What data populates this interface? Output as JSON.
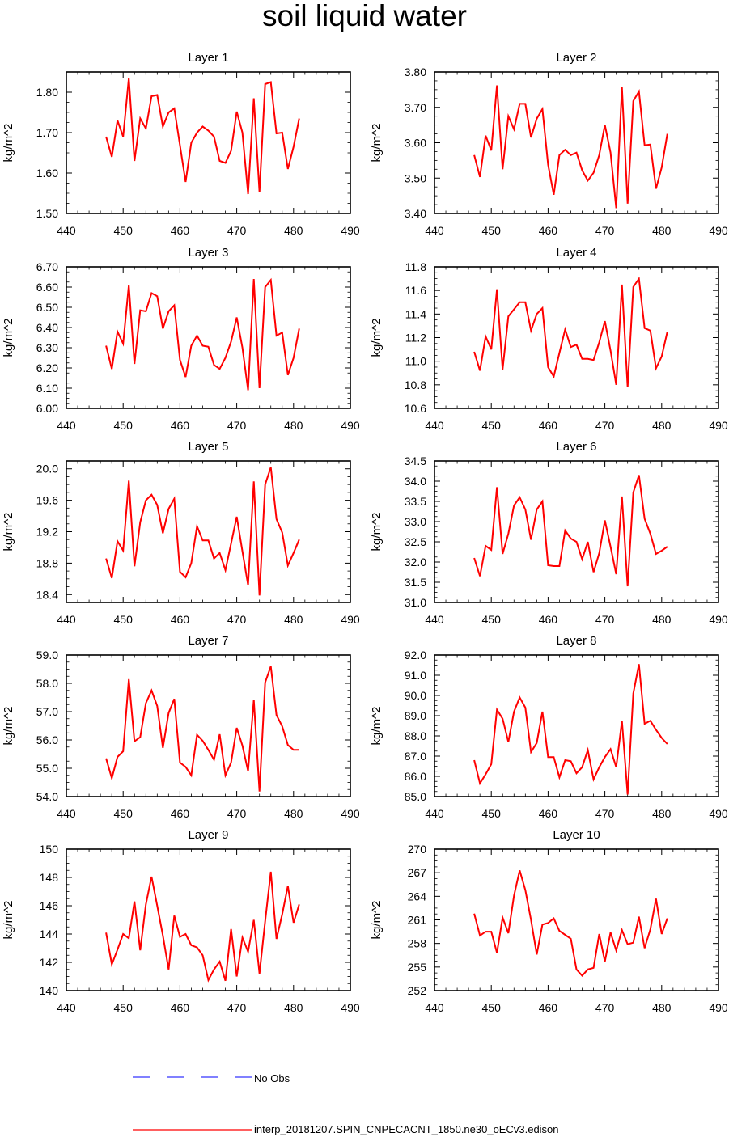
{
  "title": "soil liquid water",
  "legend": {
    "obs_label": "No Obs",
    "obs_color": "#0000ff",
    "model_label": "interp_20181207.SPIN_CNPECACNT_1850.ne30_oECv3.edison",
    "model_color": "#ff0000"
  },
  "chart_data": [
    {
      "type": "line",
      "title": "Layer 1",
      "ylabel": "kg/m^2",
      "xlim": [
        440,
        490
      ],
      "xticks": [
        440,
        450,
        460,
        470,
        480,
        490
      ],
      "xtick_labels": [
        "440",
        "450",
        "460",
        "470",
        "480",
        "490"
      ],
      "ylim": [
        1.5,
        1.85
      ],
      "yticks": [
        1.5,
        1.6,
        1.7,
        1.8
      ],
      "ytick_labels": [
        "1.50",
        "1.60",
        "1.70",
        "1.80"
      ],
      "x": [
        447,
        448,
        449,
        450,
        451,
        452,
        453,
        454,
        455,
        456,
        457,
        458,
        459,
        461,
        462,
        463,
        464,
        465,
        466,
        467,
        468,
        469,
        470,
        471,
        472,
        473,
        474,
        475,
        476,
        477,
        478,
        479,
        480,
        481
      ],
      "y": [
        1.69,
        1.64,
        1.73,
        1.69,
        1.835,
        1.63,
        1.735,
        1.71,
        1.79,
        1.793,
        1.715,
        1.75,
        1.76,
        1.578,
        1.675,
        1.7,
        1.715,
        1.705,
        1.69,
        1.63,
        1.625,
        1.655,
        1.752,
        1.7,
        1.548,
        1.785,
        1.552,
        1.82,
        1.825,
        1.698,
        1.7,
        1.61,
        1.665,
        1.735
      ]
    },
    {
      "type": "line",
      "title": "Layer 2",
      "ylabel": "kg/m^2",
      "xlim": [
        440,
        490
      ],
      "xticks": [
        440,
        450,
        460,
        470,
        480,
        490
      ],
      "xtick_labels": [
        "440",
        "450",
        "460",
        "470",
        "480",
        "490"
      ],
      "ylim": [
        3.4,
        3.8
      ],
      "yticks": [
        3.4,
        3.5,
        3.6,
        3.7,
        3.8
      ],
      "ytick_labels": [
        "3.40",
        "3.50",
        "3.60",
        "3.70",
        "3.80"
      ],
      "x": [
        447,
        448,
        449,
        450,
        451,
        452,
        453,
        454,
        455,
        456,
        457,
        458,
        459,
        460,
        461,
        462,
        463,
        464,
        465,
        466,
        467,
        468,
        469,
        470,
        471,
        472,
        473,
        474,
        475,
        476,
        477,
        478,
        479,
        480,
        481
      ],
      "y": [
        3.565,
        3.503,
        3.62,
        3.578,
        3.762,
        3.525,
        3.675,
        3.638,
        3.71,
        3.71,
        3.615,
        3.668,
        3.695,
        3.538,
        3.453,
        3.565,
        3.58,
        3.565,
        3.572,
        3.522,
        3.493,
        3.515,
        3.565,
        3.65,
        3.572,
        3.415,
        3.757,
        3.428,
        3.718,
        3.745,
        3.593,
        3.595,
        3.47,
        3.53,
        3.625
      ]
    },
    {
      "type": "line",
      "title": "Layer 3",
      "ylabel": "kg/m^2",
      "xlim": [
        440,
        490
      ],
      "xticks": [
        440,
        450,
        460,
        470,
        480,
        490
      ],
      "xtick_labels": [
        "440",
        "450",
        "460",
        "470",
        "480",
        "490"
      ],
      "ylim": [
        6.0,
        6.7
      ],
      "yticks": [
        6.0,
        6.1,
        6.2,
        6.3,
        6.4,
        6.5,
        6.6,
        6.7
      ],
      "ytick_labels": [
        "6.00",
        "6.10",
        "6.20",
        "6.30",
        "6.40",
        "6.50",
        "6.60",
        "6.70"
      ],
      "x": [
        447,
        448,
        449,
        450,
        451,
        452,
        453,
        454,
        455,
        456,
        457,
        458,
        459,
        460,
        461,
        462,
        463,
        464,
        465,
        466,
        467,
        468,
        469,
        470,
        471,
        472,
        473,
        474,
        475,
        476,
        477,
        478,
        479,
        480,
        481
      ],
      "y": [
        6.31,
        6.195,
        6.38,
        6.32,
        6.61,
        6.22,
        6.485,
        6.48,
        6.57,
        6.555,
        6.395,
        6.48,
        6.51,
        6.24,
        6.155,
        6.31,
        6.36,
        6.31,
        6.305,
        6.215,
        6.195,
        6.25,
        6.33,
        6.45,
        6.3,
        6.09,
        6.64,
        6.1,
        6.6,
        6.635,
        6.36,
        6.375,
        6.165,
        6.25,
        6.395
      ]
    },
    {
      "type": "line",
      "title": "Layer 4",
      "ylabel": "kg/m^2",
      "xlim": [
        440,
        490
      ],
      "xticks": [
        440,
        450,
        460,
        470,
        480,
        490
      ],
      "xtick_labels": [
        "440",
        "450",
        "460",
        "470",
        "480",
        "490"
      ],
      "ylim": [
        10.6,
        11.8
      ],
      "yticks": [
        10.6,
        10.8,
        11.0,
        11.2,
        11.4,
        11.6,
        11.8
      ],
      "ytick_labels": [
        "10.6",
        "10.8",
        "11.0",
        "11.2",
        "11.4",
        "11.6",
        "11.8"
      ],
      "x": [
        447,
        448,
        449,
        450,
        451,
        452,
        453,
        454,
        455,
        456,
        457,
        458,
        459,
        460,
        461,
        462,
        463,
        464,
        465,
        466,
        467,
        468,
        469,
        470,
        471,
        472,
        473,
        474,
        475,
        476,
        477,
        478,
        479,
        480,
        481
      ],
      "y": [
        11.08,
        10.92,
        11.21,
        11.1,
        11.61,
        10.93,
        11.38,
        11.44,
        11.5,
        11.5,
        11.26,
        11.4,
        11.45,
        10.95,
        10.87,
        11.07,
        11.27,
        11.12,
        11.14,
        11.02,
        11.02,
        11.01,
        11.16,
        11.34,
        11.09,
        10.8,
        11.65,
        10.78,
        11.63,
        11.7,
        11.28,
        11.26,
        10.94,
        11.04,
        11.25
      ]
    },
    {
      "type": "line",
      "title": "Layer 5",
      "ylabel": "kg/m^2",
      "xlim": [
        440,
        490
      ],
      "xticks": [
        440,
        450,
        460,
        470,
        480,
        490
      ],
      "xtick_labels": [
        "440",
        "450",
        "460",
        "470",
        "480",
        "490"
      ],
      "ylim": [
        18.3,
        20.1
      ],
      "yticks": [
        18.4,
        18.8,
        19.2,
        19.6,
        20.0
      ],
      "ytick_labels": [
        "18.4",
        "18.8",
        "19.2",
        "19.6",
        "20.0"
      ],
      "x": [
        447,
        448,
        449,
        450,
        451,
        452,
        453,
        454,
        455,
        456,
        457,
        458,
        459,
        460,
        461,
        462,
        463,
        464,
        465,
        466,
        467,
        468,
        469,
        470,
        471,
        472,
        473,
        474,
        475,
        476,
        477,
        478,
        479,
        480,
        481
      ],
      "y": [
        18.86,
        18.61,
        19.08,
        18.96,
        19.85,
        18.76,
        19.32,
        19.6,
        19.67,
        19.54,
        19.18,
        19.49,
        19.62,
        18.69,
        18.62,
        18.8,
        19.27,
        19.09,
        19.09,
        18.86,
        18.93,
        18.71,
        19.05,
        19.39,
        18.95,
        18.52,
        19.84,
        18.39,
        19.8,
        20.02,
        19.36,
        19.19,
        18.77,
        18.93,
        19.1
      ]
    },
    {
      "type": "line",
      "title": "Layer 6",
      "ylabel": "kg/m^2",
      "xlim": [
        440,
        490
      ],
      "xticks": [
        440,
        450,
        460,
        470,
        480,
        490
      ],
      "xtick_labels": [
        "440",
        "450",
        "460",
        "470",
        "480",
        "490"
      ],
      "ylim": [
        31.0,
        34.5
      ],
      "yticks": [
        31.0,
        31.5,
        32.0,
        32.5,
        33.0,
        33.5,
        34.0,
        34.5
      ],
      "ytick_labels": [
        "31.0",
        "31.5",
        "32.0",
        "32.5",
        "33.0",
        "33.5",
        "34.0",
        "34.5"
      ],
      "x": [
        447,
        448,
        449,
        450,
        451,
        452,
        453,
        454,
        455,
        456,
        457,
        458,
        459,
        460,
        461,
        462,
        463,
        464,
        465,
        466,
        467,
        468,
        469,
        470,
        471,
        472,
        473,
        474,
        475,
        476,
        477,
        478,
        479,
        480,
        481
      ],
      "y": [
        32.1,
        31.65,
        32.4,
        32.3,
        33.85,
        32.2,
        32.7,
        33.4,
        33.6,
        33.3,
        32.55,
        33.3,
        33.5,
        31.92,
        31.9,
        31.9,
        32.78,
        32.58,
        32.5,
        32.07,
        32.5,
        31.75,
        32.22,
        33.03,
        32.38,
        31.7,
        33.62,
        31.4,
        33.72,
        34.15,
        33.07,
        32.7,
        32.2,
        32.28,
        32.38
      ]
    },
    {
      "type": "line",
      "title": "Layer 7",
      "ylabel": "kg/m^2",
      "xlim": [
        440,
        490
      ],
      "xticks": [
        440,
        450,
        460,
        470,
        480,
        490
      ],
      "xtick_labels": [
        "440",
        "450",
        "460",
        "470",
        "480",
        "490"
      ],
      "ylim": [
        54.0,
        59.0
      ],
      "yticks": [
        54.0,
        55.0,
        56.0,
        57.0,
        58.0,
        59.0
      ],
      "ytick_labels": [
        "54.0",
        "55.0",
        "56.0",
        "57.0",
        "58.0",
        "59.0"
      ],
      "x": [
        447,
        448,
        449,
        450,
        451,
        452,
        453,
        454,
        455,
        456,
        457,
        458,
        459,
        460,
        461,
        462,
        463,
        464,
        465,
        466,
        467,
        468,
        469,
        470,
        471,
        472,
        473,
        474,
        475,
        476,
        477,
        478,
        479,
        480,
        481
      ],
      "y": [
        55.35,
        54.65,
        55.4,
        55.6,
        58.15,
        55.95,
        56.1,
        57.3,
        57.75,
        57.2,
        55.72,
        56.95,
        57.45,
        55.2,
        55.05,
        54.75,
        56.18,
        55.97,
        55.65,
        55.3,
        56.2,
        54.75,
        55.2,
        56.43,
        55.8,
        54.9,
        57.42,
        54.18,
        58.03,
        58.6,
        56.88,
        56.48,
        55.82,
        55.65,
        55.65
      ]
    },
    {
      "type": "line",
      "title": "Layer 8",
      "ylabel": "kg/m^2",
      "xlim": [
        440,
        490
      ],
      "xticks": [
        440,
        450,
        460,
        470,
        480,
        490
      ],
      "xtick_labels": [
        "440",
        "450",
        "460",
        "470",
        "480",
        "490"
      ],
      "ylim": [
        85.0,
        92.0
      ],
      "yticks": [
        85.0,
        86.0,
        87.0,
        88.0,
        89.0,
        90.0,
        91.0,
        92.0
      ],
      "ytick_labels": [
        "85.0",
        "86.0",
        "87.0",
        "88.0",
        "89.0",
        "90.0",
        "91.0",
        "92.0"
      ],
      "x": [
        447,
        448,
        449,
        450,
        451,
        452,
        453,
        454,
        455,
        456,
        457,
        458,
        459,
        460,
        461,
        462,
        463,
        464,
        465,
        466,
        467,
        468,
        469,
        470,
        471,
        472,
        473,
        474,
        475,
        476,
        477,
        478,
        479,
        480,
        481
      ],
      "y": [
        86.8,
        85.65,
        86.1,
        86.6,
        89.3,
        88.85,
        87.7,
        89.2,
        89.9,
        89.4,
        87.2,
        87.65,
        89.2,
        86.95,
        86.95,
        85.95,
        86.8,
        86.75,
        86.15,
        86.45,
        87.3,
        85.85,
        86.45,
        86.95,
        87.35,
        86.45,
        88.75,
        85.1,
        90.1,
        91.55,
        88.6,
        88.75,
        88.3,
        87.9,
        87.6
      ]
    },
    {
      "type": "line",
      "title": "Layer 9",
      "ylabel": "kg/m^2",
      "xlim": [
        440,
        490
      ],
      "xticks": [
        440,
        450,
        460,
        470,
        480,
        490
      ],
      "xtick_labels": [
        "440",
        "450",
        "460",
        "470",
        "480",
        "490"
      ],
      "ylim": [
        140,
        150
      ],
      "yticks": [
        140,
        142,
        144,
        146,
        148,
        150
      ],
      "ytick_labels": [
        "140",
        "142",
        "144",
        "146",
        "148",
        "150"
      ],
      "x": [
        447,
        448,
        449,
        450,
        451,
        452,
        453,
        454,
        455,
        456,
        457,
        458,
        459,
        460,
        461,
        462,
        463,
        464,
        465,
        466,
        467,
        468,
        469,
        470,
        471,
        472,
        473,
        474,
        475,
        476,
        477,
        478,
        479,
        480,
        481
      ],
      "y": [
        144.1,
        141.85,
        142.9,
        144.0,
        143.7,
        146.3,
        142.85,
        146.1,
        148.05,
        146.0,
        143.9,
        141.5,
        145.3,
        143.8,
        144.0,
        143.2,
        143.05,
        142.5,
        140.75,
        141.5,
        142.05,
        140.7,
        144.35,
        141.0,
        143.75,
        142.75,
        145.0,
        141.2,
        144.9,
        148.4,
        143.65,
        145.4,
        147.4,
        144.8,
        146.1
      ]
    },
    {
      "type": "line",
      "title": "Layer 10",
      "ylabel": "kg/m^2",
      "xlim": [
        440,
        490
      ],
      "xticks": [
        440,
        450,
        460,
        470,
        480,
        490
      ],
      "xtick_labels": [
        "440",
        "450",
        "460",
        "470",
        "480",
        "490"
      ],
      "ylim": [
        252,
        270
      ],
      "yticks": [
        252,
        255,
        258,
        261,
        264,
        267,
        270
      ],
      "ytick_labels": [
        "252",
        "255",
        "258",
        "261",
        "264",
        "267",
        "270"
      ],
      "x": [
        447,
        448,
        449,
        450,
        451,
        452,
        453,
        454,
        455,
        456,
        457,
        458,
        459,
        460,
        461,
        462,
        463,
        464,
        465,
        466,
        467,
        468,
        469,
        470,
        471,
        472,
        473,
        474,
        475,
        476,
        477,
        478,
        479,
        480,
        481
      ],
      "y": [
        261.8,
        259.0,
        259.5,
        259.5,
        256.8,
        261.3,
        259.3,
        264.1,
        267.3,
        264.8,
        261.0,
        256.6,
        260.4,
        260.6,
        261.2,
        259.6,
        259.1,
        258.6,
        254.7,
        253.9,
        254.7,
        254.9,
        259.2,
        255.7,
        259.4,
        257.1,
        259.7,
        257.9,
        258.1,
        261.4,
        257.4,
        259.8,
        263.7,
        259.2,
        261.2
      ]
    }
  ]
}
